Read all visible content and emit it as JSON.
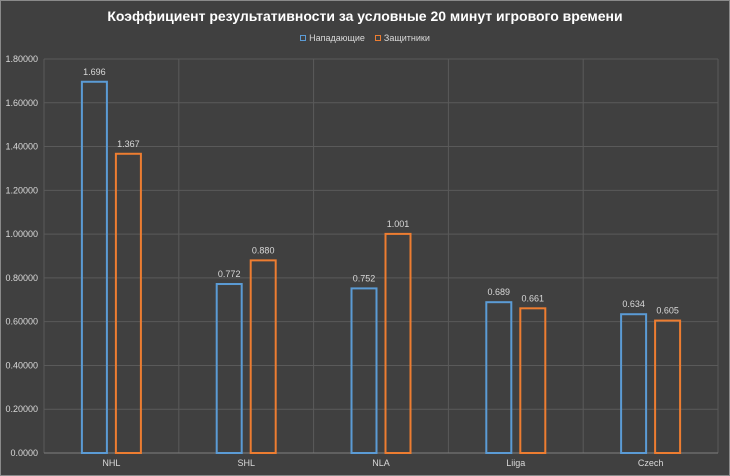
{
  "chart_data": {
    "type": "bar",
    "title": "Коэффициент результативности за  условные 20 минут игрового времени",
    "categories": [
      "NHL",
      "SHL",
      "NLA",
      "Liiga",
      "Czech"
    ],
    "series": [
      {
        "name": "Нападающие",
        "values": [
          1.696,
          0.772,
          0.752,
          0.689,
          0.634
        ],
        "labels": [
          "1.696",
          "0.772",
          "0.752",
          "0.689",
          "0.634"
        ],
        "color": "#5b9bd5"
      },
      {
        "name": "Защитники",
        "values": [
          1.367,
          0.88,
          1.001,
          0.661,
          0.605
        ],
        "labels": [
          "1.367",
          "0.880",
          "1.001",
          "0.661",
          "0.605"
        ],
        "color": "#ed7d31"
      }
    ],
    "ylim": [
      0,
      1.8
    ],
    "yticks": [
      "0.0000",
      "0.20000",
      "0.40000",
      "0.60000",
      "0.80000",
      "1.00000",
      "1.20000",
      "1.40000",
      "1.60000",
      "1.80000"
    ],
    "grid": true,
    "legend": "top-center",
    "background": "#404040",
    "gridColor": "#5a5a5a",
    "textColor": "#d9d9d9"
  }
}
